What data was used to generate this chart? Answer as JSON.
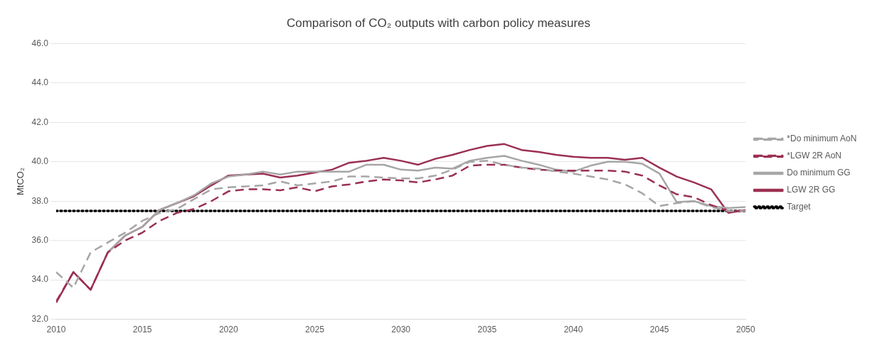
{
  "chart_data": {
    "type": "line",
    "title": "Comparison of CO₂ outputs with carbon policy measures",
    "ylabel": "MtCO₂",
    "x": [
      2010,
      2011,
      2012,
      2013,
      2014,
      2015,
      2016,
      2017,
      2018,
      2019,
      2020,
      2021,
      2022,
      2023,
      2024,
      2025,
      2026,
      2027,
      2028,
      2029,
      2030,
      2031,
      2032,
      2033,
      2034,
      2035,
      2036,
      2037,
      2038,
      2039,
      2040,
      2041,
      2042,
      2043,
      2044,
      2045,
      2046,
      2047,
      2048,
      2049,
      2050
    ],
    "xlim": [
      2010,
      2050
    ],
    "xticks": [
      2010,
      2015,
      2020,
      2025,
      2030,
      2035,
      2040,
      2045,
      2050
    ],
    "ylim": [
      32,
      46
    ],
    "yticks": [
      {
        "value": 32,
        "label": "32.0"
      },
      {
        "value": 34,
        "label": "34.0"
      },
      {
        "value": 36,
        "label": "36.0"
      },
      {
        "value": 38,
        "label": "38.0"
      },
      {
        "value": 40,
        "label": "40.0"
      },
      {
        "value": 42,
        "label": "42.0"
      },
      {
        "value": 44,
        "label": "44.0"
      },
      {
        "value": 46,
        "label": "46.0"
      }
    ],
    "grid": "y",
    "legend": "right",
    "marker": "none",
    "series": [
      {
        "name": "*Do minimum AoN",
        "color": "#a6a6a6",
        "line_style": "dashed",
        "values": [
          34.4,
          33.6,
          35.4,
          35.9,
          36.4,
          37.0,
          37.4,
          37.6,
          38.1,
          38.6,
          38.7,
          38.75,
          38.8,
          39.0,
          38.8,
          38.9,
          39.0,
          39.25,
          39.25,
          39.2,
          39.15,
          39.15,
          39.3,
          39.6,
          40.0,
          40.05,
          39.85,
          39.7,
          39.65,
          39.5,
          39.4,
          39.25,
          39.1,
          38.85,
          38.4,
          37.75,
          37.9,
          38.0,
          37.7,
          37.5,
          37.5
        ]
      },
      {
        "name": "*LGW 2R AoN",
        "color": "#9b3052",
        "line_style": "dashed",
        "values": [
          32.9,
          34.4,
          33.5,
          35.4,
          36.0,
          36.4,
          37.0,
          37.4,
          37.6,
          38.0,
          38.5,
          38.6,
          38.6,
          38.55,
          38.7,
          38.5,
          38.75,
          38.85,
          39.0,
          39.1,
          39.05,
          38.95,
          39.1,
          39.3,
          39.8,
          39.85,
          39.85,
          39.7,
          39.6,
          39.55,
          39.55,
          39.55,
          39.55,
          39.5,
          39.3,
          38.8,
          38.35,
          38.2,
          37.8,
          37.5,
          37.5
        ]
      },
      {
        "name": "Do minimum GG",
        "color": "#a6a6a6",
        "line_style": "solid",
        "values": [
          null,
          null,
          null,
          35.4,
          36.25,
          36.7,
          37.55,
          37.9,
          38.3,
          38.9,
          39.25,
          39.35,
          39.5,
          39.35,
          39.5,
          39.5,
          39.5,
          39.5,
          39.85,
          39.85,
          39.6,
          39.55,
          39.7,
          39.65,
          40.05,
          40.2,
          40.3,
          40.05,
          39.85,
          39.6,
          39.5,
          39.8,
          40.0,
          40.0,
          39.9,
          39.4,
          37.95,
          38.0,
          37.75,
          37.65,
          37.7
        ]
      },
      {
        "name": "LGW 2R GG",
        "color": "#9b3052",
        "line_style": "solid",
        "values": [
          32.85,
          34.4,
          33.5,
          35.4,
          36.25,
          36.7,
          37.55,
          37.9,
          38.25,
          38.8,
          39.3,
          39.35,
          39.4,
          39.2,
          39.3,
          39.45,
          39.6,
          39.95,
          40.05,
          40.2,
          40.05,
          39.85,
          40.15,
          40.35,
          40.6,
          40.8,
          40.9,
          40.6,
          40.5,
          40.35,
          40.25,
          40.2,
          40.2,
          40.1,
          40.2,
          39.7,
          39.25,
          38.95,
          38.6,
          37.4,
          37.55
        ]
      },
      {
        "name": "Target",
        "color": "#000000",
        "line_style": "dotted",
        "x": [
          2010,
          2050
        ],
        "values": [
          37.5,
          37.5
        ]
      }
    ]
  }
}
